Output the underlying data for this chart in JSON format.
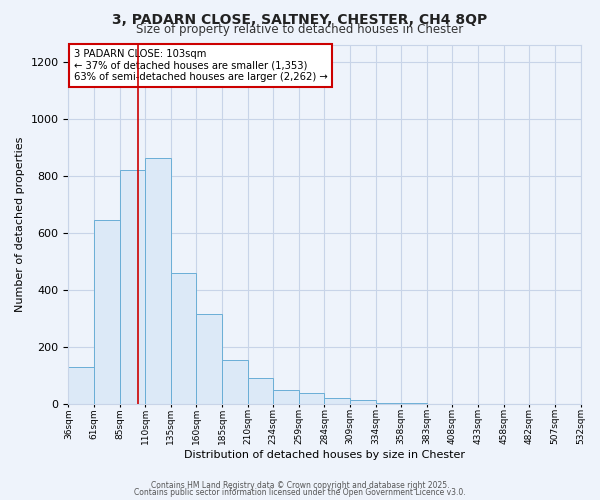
{
  "title_line1": "3, PADARN CLOSE, SALTNEY, CHESTER, CH4 8QP",
  "title_line2": "Size of property relative to detached houses in Chester",
  "xlabel": "Distribution of detached houses by size in Chester",
  "ylabel": "Number of detached properties",
  "bar_values": [
    130,
    645,
    820,
    865,
    460,
    315,
    155,
    90,
    50,
    40,
    20,
    15,
    2,
    2,
    0,
    0,
    0,
    0,
    0,
    0
  ],
  "bin_labels": [
    "36sqm",
    "61sqm",
    "85sqm",
    "110sqm",
    "135sqm",
    "160sqm",
    "185sqm",
    "210sqm",
    "234sqm",
    "259sqm",
    "284sqm",
    "309sqm",
    "334sqm",
    "358sqm",
    "383sqm",
    "408sqm",
    "433sqm",
    "458sqm",
    "482sqm",
    "507sqm",
    "532sqm"
  ],
  "bar_color_fill": "#dce9f7",
  "bar_color_edge": "#6aaed6",
  "grid_color": "#c8d4e8",
  "background_color": "#eef3fb",
  "vline_x": 2.72,
  "vline_color": "#cc0000",
  "annotation_line1": "3 PADARN CLOSE: 103sqm",
  "annotation_line2": "← 37% of detached houses are smaller (1,353)",
  "annotation_line3": "63% of semi-detached houses are larger (2,262) →",
  "ylim": [
    0,
    1260
  ],
  "yticks": [
    0,
    200,
    400,
    600,
    800,
    1000,
    1200
  ],
  "footer_line1": "Contains HM Land Registry data © Crown copyright and database right 2025.",
  "footer_line2": "Contains public sector information licensed under the Open Government Licence v3.0."
}
